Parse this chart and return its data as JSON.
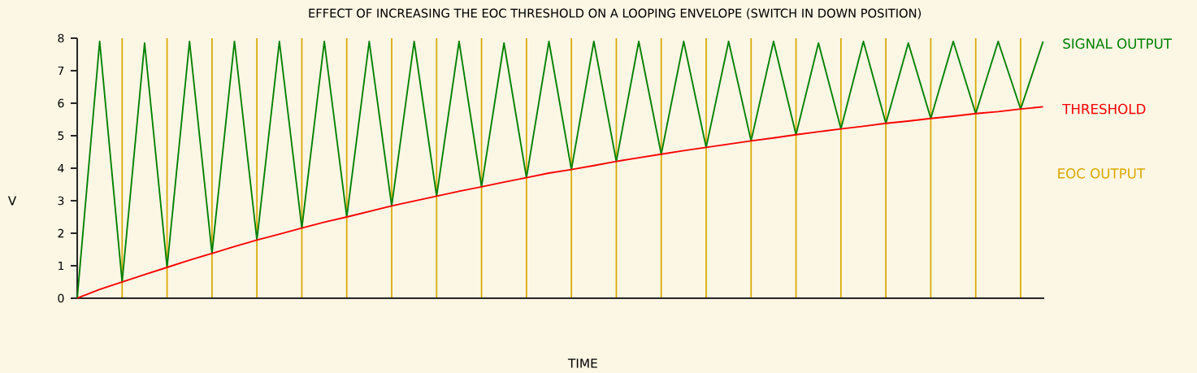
{
  "chart_data": {
    "type": "line",
    "title": "EFFECT OF INCREASING THE EOC THRESHOLD ON A LOOPING ENVELOPE (SWITCH IN DOWN POSITION)",
    "xlabel": "TIME",
    "ylabel": "V",
    "categories": [
      null,
      null,
      null,
      null,
      null,
      null,
      null,
      null,
      null,
      null,
      null,
      null,
      null,
      null,
      null,
      null,
      null,
      null,
      null,
      null,
      null,
      null,
      null,
      null,
      null,
      null,
      null,
      null,
      null,
      null,
      null,
      null,
      null,
      null,
      null,
      null,
      null,
      null,
      null,
      null,
      null,
      null,
      null,
      null
    ],
    "ylim": [
      0,
      8
    ],
    "yticks": [
      0,
      1,
      2,
      3,
      4,
      5,
      6,
      7,
      8
    ],
    "marker": "none",
    "line_style": "solid",
    "grid": "x",
    "annotations": [
      "EOC OUTPUT"
    ],
    "series": [
      {
        "name": "SIGNAL OUTPUT",
        "color": "#008000",
        "values": [
          0,
          7.9,
          0.5,
          7.85,
          0.95,
          7.9,
          1.38,
          7.9,
          1.79,
          7.9,
          2.16,
          7.9,
          2.5,
          7.9,
          2.84,
          7.9,
          3.14,
          7.9,
          3.43,
          7.85,
          3.71,
          7.9,
          3.96,
          7.9,
          4.21,
          7.9,
          4.43,
          7.9,
          4.64,
          7.9,
          4.84,
          7.9,
          5.03,
          7.85,
          5.21,
          7.9,
          5.38,
          7.85,
          5.53,
          7.9,
          5.68,
          7.9,
          5.82,
          7.9
        ]
      },
      {
        "name": "THRESHOLD",
        "color": "#ff0000",
        "values": [
          0,
          0.27,
          0.5,
          0.73,
          0.95,
          1.17,
          1.38,
          1.59,
          1.79,
          1.97,
          2.16,
          2.34,
          2.5,
          2.67,
          2.84,
          2.99,
          3.14,
          3.29,
          3.43,
          3.57,
          3.71,
          3.85,
          3.96,
          4.08,
          4.21,
          4.32,
          4.43,
          4.54,
          4.64,
          4.74,
          4.84,
          4.93,
          5.03,
          5.12,
          5.21,
          5.29,
          5.38,
          5.45,
          5.53,
          5.6,
          5.68,
          5.74,
          5.82,
          5.89
        ]
      }
    ]
  }
}
